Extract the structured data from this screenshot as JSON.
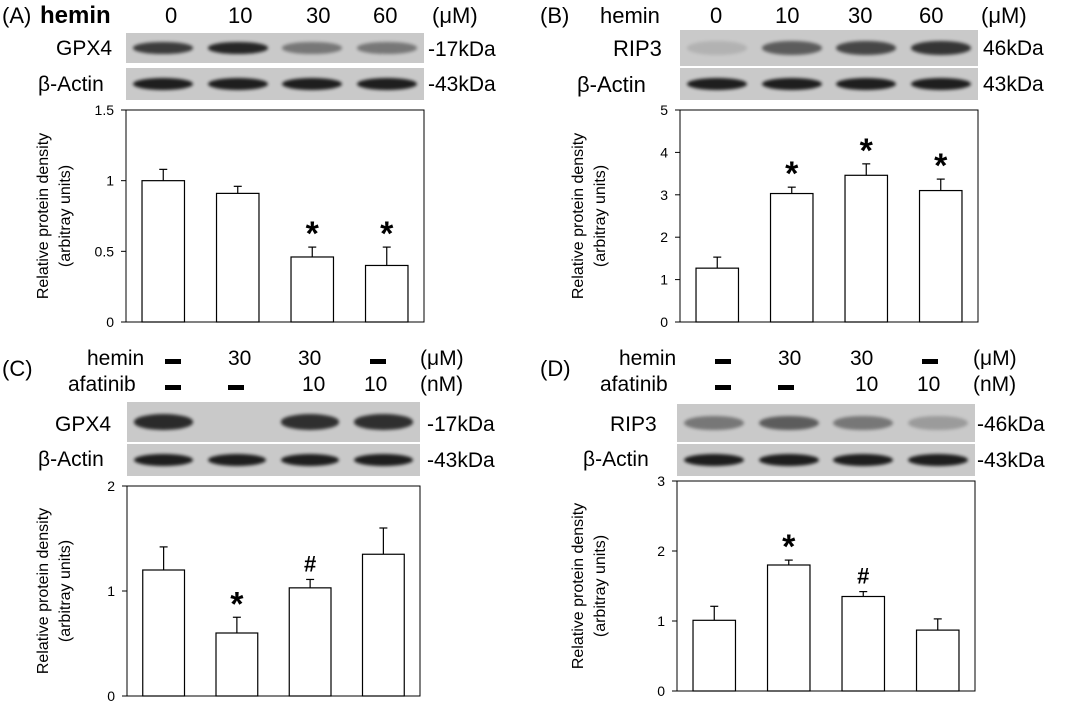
{
  "colors": {
    "bar_fill": "#ffffff",
    "axis": "#000000",
    "blot_bg": "#c9c9c9",
    "band_dark": "#151515"
  },
  "panels": {
    "A": {
      "letter": "(A)",
      "row1": {
        "label": "hemin",
        "values": [
          "0",
          "10",
          "30",
          "60"
        ],
        "unit": "(μM)"
      },
      "blot1": {
        "name": "GPX4",
        "size": "-17kDa",
        "intensity": [
          0.78,
          0.9,
          0.45,
          0.45
        ]
      },
      "blot2": {
        "name": "β-Actin",
        "size": "-43kDa",
        "intensity": [
          0.95,
          0.95,
          0.95,
          0.95
        ]
      }
    },
    "B": {
      "letter": "(B)",
      "row1": {
        "label": "hemin",
        "values": [
          "0",
          "10",
          "30",
          "60"
        ],
        "unit": "(μM)"
      },
      "blot1": {
        "name": "RIP3",
        "size": "46kDa",
        "intensity": [
          0.12,
          0.6,
          0.72,
          0.82
        ]
      },
      "blot2": {
        "name": "β-Actin",
        "size": "43kDa",
        "intensity": [
          0.95,
          0.95,
          0.95,
          0.95
        ]
      }
    },
    "C": {
      "letter": "(C)",
      "row1": {
        "label": "hemin",
        "values": [
          "-",
          "30",
          "30",
          "-"
        ],
        "unit": "(μM)"
      },
      "row2": {
        "label": "afatinib",
        "values": [
          "-",
          "-",
          "10",
          "10"
        ],
        "unit": "(nM)"
      },
      "blot1": {
        "name": "GPX4",
        "size": "-17kDa",
        "intensity": [
          0.88,
          0.0,
          0.85,
          0.85
        ]
      },
      "blot2": {
        "name": "β-Actin",
        "size": "-43kDa",
        "intensity": [
          0.95,
          0.95,
          0.95,
          0.95
        ]
      }
    },
    "D": {
      "letter": "(D)",
      "row1": {
        "label": "hemin",
        "values": [
          "-",
          "30",
          "30",
          "-"
        ],
        "unit": "(μM)"
      },
      "row2": {
        "label": "afatinib",
        "values": [
          "-",
          "-",
          "10",
          "10"
        ],
        "unit": "(nM)"
      },
      "blot1": {
        "name": "RIP3",
        "size": "-46kDa",
        "intensity": [
          0.45,
          0.6,
          0.45,
          0.25
        ]
      },
      "blot2": {
        "name": "β-Actin",
        "size": "-43kDa",
        "intensity": [
          0.95,
          0.95,
          0.95,
          0.95
        ]
      }
    }
  },
  "chart_data": [
    {
      "panel": "A",
      "type": "bar",
      "categories": [
        "0",
        "10",
        "30",
        "60"
      ],
      "values": [
        1.0,
        0.91,
        0.46,
        0.4
      ],
      "errors": [
        0.08,
        0.05,
        0.07,
        0.13
      ],
      "annotations": [
        "",
        "",
        "*",
        "*"
      ],
      "ylabel": [
        "Relative protein density",
        "(arbitray units)"
      ],
      "ylim": [
        0,
        1.5
      ],
      "yticks": [
        0,
        0.5,
        1,
        1.5
      ],
      "ytick_labels": [
        "0",
        "0.5",
        "1",
        "1.5"
      ]
    },
    {
      "panel": "B",
      "type": "bar",
      "categories": [
        "0",
        "10",
        "30",
        "60"
      ],
      "values": [
        1.27,
        3.03,
        3.46,
        3.1
      ],
      "errors": [
        0.26,
        0.15,
        0.27,
        0.27
      ],
      "annotations": [
        "",
        "*",
        "*",
        "*"
      ],
      "ylabel": [
        "Relative protein density",
        "(arbitray units)"
      ],
      "ylim": [
        0,
        5
      ],
      "yticks": [
        0,
        1,
        2,
        3,
        4,
        5
      ],
      "ytick_labels": [
        "0",
        "1",
        "2",
        "3",
        "4",
        "5"
      ]
    },
    {
      "panel": "C",
      "type": "bar",
      "categories": [
        "-/-",
        "30/-",
        "30/10",
        "-/10"
      ],
      "values": [
        1.2,
        0.6,
        1.03,
        1.35
      ],
      "errors": [
        0.22,
        0.15,
        0.08,
        0.25
      ],
      "annotations": [
        "",
        "*",
        "#",
        ""
      ],
      "ylabel": [
        "Relative protein density",
        "(arbitray units)"
      ],
      "ylim": [
        0,
        2
      ],
      "yticks": [
        0,
        1,
        2
      ],
      "ytick_labels": [
        "0",
        "1",
        "2"
      ]
    },
    {
      "panel": "D",
      "type": "bar",
      "categories": [
        "-/-",
        "30/-",
        "30/10",
        "-/10"
      ],
      "values": [
        1.01,
        1.8,
        1.35,
        0.87
      ],
      "errors": [
        0.2,
        0.07,
        0.07,
        0.16
      ],
      "annotations": [
        "",
        "*",
        "#",
        ""
      ],
      "ylabel": [
        "Relative protein density",
        "(arbitray units)"
      ],
      "ylim": [
        0,
        3
      ],
      "yticks": [
        0,
        1,
        2,
        3
      ],
      "ytick_labels": [
        "0",
        "1",
        "2",
        "3"
      ]
    }
  ]
}
